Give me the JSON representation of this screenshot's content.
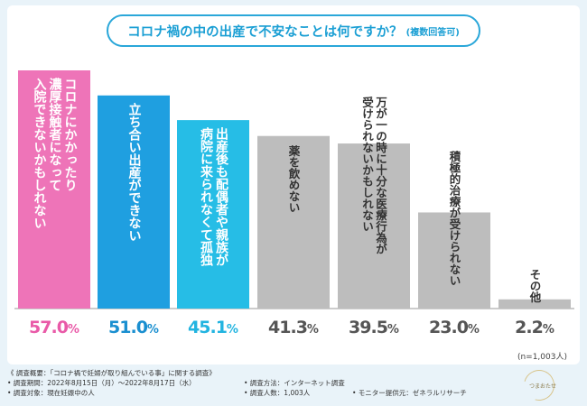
{
  "colors": {
    "pink": "#ee74b8",
    "blue": "#1f9fe0",
    "cyan": "#26bde6",
    "gray": "#bdbdbd",
    "pink_text": "#e95aa8",
    "blue_text": "#1a8fd0",
    "cyan_text": "#22b4e0",
    "gray_text": "#555555"
  },
  "title": {
    "main": "コロナ禍の中の出産で不安なことは何ですか？",
    "sub": "(複数回答可)"
  },
  "chart_data": {
    "type": "bar",
    "title": "コロナ禍の中の出産で不安なことは何ですか？(複数回答可)",
    "ylabel": "",
    "xlabel": "",
    "ylim": [
      0,
      57
    ],
    "unit": "%",
    "categories": [
      "コロナにかかったり濃厚接触者になって入院できないかもしれない",
      "立ち合い出産ができない",
      "出産後も配偶者や親族が病院に来られなくて孤独",
      "薬を飲めない",
      "万が一の時に十分な医療行為が受けられないかもしれない",
      "積極的治療が受けられない",
      "その他"
    ],
    "label_lines": [
      [
        "コロナにかかったり",
        "濃厚接触者になって",
        "入院できないかもしれない"
      ],
      [
        "立ち合い出産ができない"
      ],
      [
        "出産後も配偶者や親族が",
        "病院に来られなくて孤独"
      ],
      [
        "薬を飲めない"
      ],
      [
        "万が一の時に十分な医療行為が",
        "受けられないかもしれない"
      ],
      [
        "積極的治療が受けられない"
      ],
      [
        "その他"
      ]
    ],
    "values": [
      57.0,
      51.0,
      45.1,
      41.3,
      39.5,
      23.0,
      2.2
    ],
    "value_labels": [
      "57.0",
      "51.0",
      "45.1",
      "41.3",
      "39.5",
      "23.0",
      "2.2"
    ]
  },
  "sample_size": "(n=1,003人)",
  "footer": {
    "summary": "《 調査概要：「コロナ禍で妊婦が取り組んでいる事」に関する調査》",
    "period": "• 調査期間：2022年8月15日（月）～2022年8月17日（水）",
    "method": "• 調査方法：インターネット調査",
    "target": "• 調査対象：現在妊娠中の人",
    "count": "• 調査人数：1,003人",
    "provider": "• モニター提供元：ゼネラルリサーチ"
  },
  "logo_text": "つまおたせ"
}
